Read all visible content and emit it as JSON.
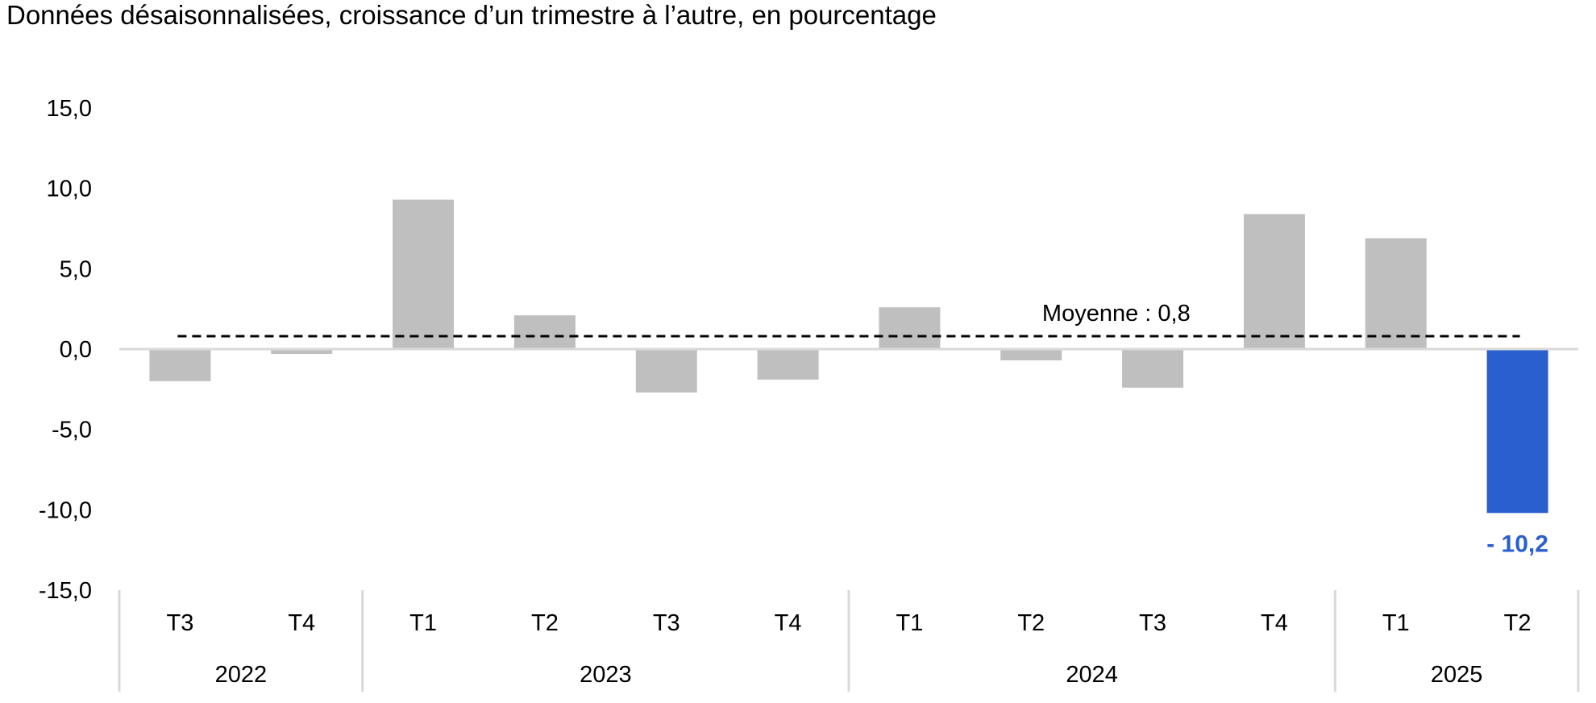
{
  "chart_data": {
    "type": "bar",
    "title": "Données désaisonnalisées, croissance d’un trimestre à l’autre, en pourcentage",
    "categories": [
      "T3",
      "T4",
      "T1",
      "T2",
      "T3",
      "T4",
      "T1",
      "T2",
      "T3",
      "T4",
      "T1",
      "T2"
    ],
    "years": [
      {
        "label": "2022",
        "count": 2
      },
      {
        "label": "2023",
        "count": 4
      },
      {
        "label": "2024",
        "count": 4
      },
      {
        "label": "2025",
        "count": 2
      }
    ],
    "values": [
      -2.0,
      -0.3,
      9.3,
      2.1,
      -2.7,
      -1.9,
      2.6,
      -0.7,
      -2.4,
      8.4,
      6.9,
      -10.2
    ],
    "ylim": [
      -15,
      15
    ],
    "yticks": [
      15,
      10,
      5,
      0,
      -5,
      -10,
      -15
    ],
    "ytick_labels": [
      "15,0",
      "10,0",
      "5,0",
      "0,0",
      "-5,0",
      "-10,0",
      "-15,0"
    ],
    "average": {
      "value": 0.8,
      "label": "Moyenne : 0,8"
    },
    "data_labels": [
      {
        "index": 11,
        "text": "- 10,2"
      }
    ],
    "colors": {
      "bar": "#bfbfbf",
      "highlight": "#2a5fcf",
      "axis": "#d9d9d9",
      "average_line": "#000000"
    },
    "highlight_index": 11,
    "grid": false,
    "legend": "none",
    "xlabel": "",
    "ylabel": ""
  }
}
